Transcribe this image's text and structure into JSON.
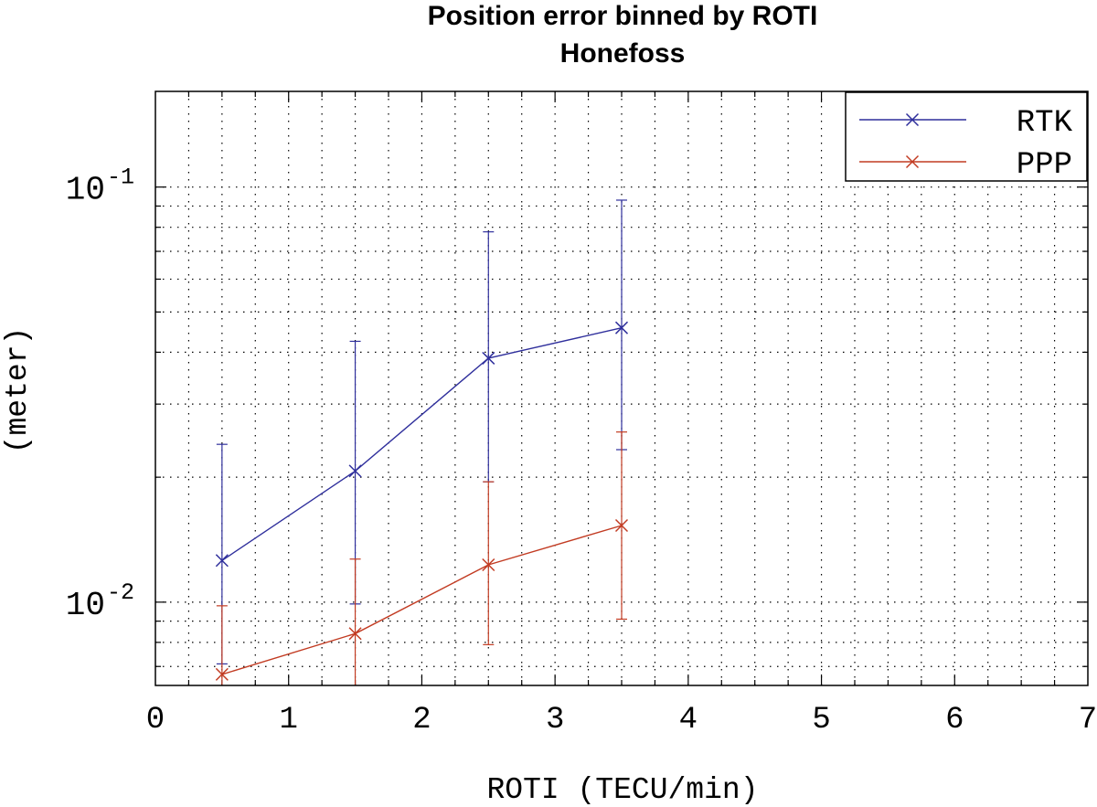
{
  "chart_data": {
    "type": "line",
    "title": "Position error binned by ROTI",
    "subtitle": "Honefoss",
    "xlabel": "ROTI (TECU/min)",
    "ylabel": "(meter)",
    "xlim": [
      0,
      7
    ],
    "ylim": [
      0.0063,
      0.17
    ],
    "yscale": "log",
    "x_ticks": [
      0,
      1,
      2,
      3,
      4,
      5,
      6,
      7
    ],
    "x_tick_labels": [
      "0",
      "1",
      "2",
      "3",
      "4",
      "5",
      "6",
      "7"
    ],
    "y_ticks": [
      {
        "value": 0.1,
        "base": "10",
        "exponent": "-1"
      },
      {
        "value": 0.01,
        "base": "10",
        "exponent": "-2"
      }
    ],
    "grid": true,
    "legend_position": "top-right",
    "series": [
      {
        "name": "RTK",
        "color": "#2f2f9c",
        "marker": "x",
        "x": [
          0.5,
          1.5,
          2.5,
          3.5
        ],
        "y": [
          0.0126,
          0.0207,
          0.0387,
          0.0458
        ],
        "y_lower": [
          0.0071,
          0.0099,
          0.0195,
          0.0233
        ],
        "y_upper": [
          0.024,
          0.0425,
          0.078,
          0.093
        ]
      },
      {
        "name": "PPP",
        "color": "#c23b22",
        "marker": "x",
        "x": [
          0.5,
          1.5,
          2.5,
          3.5
        ],
        "y": [
          0.0067,
          0.0084,
          0.0123,
          0.0153
        ],
        "y_lower": [
          0.006,
          0.006,
          0.0079,
          0.0091
        ],
        "y_upper": [
          0.0098,
          0.0127,
          0.0195,
          0.0257
        ]
      }
    ]
  }
}
